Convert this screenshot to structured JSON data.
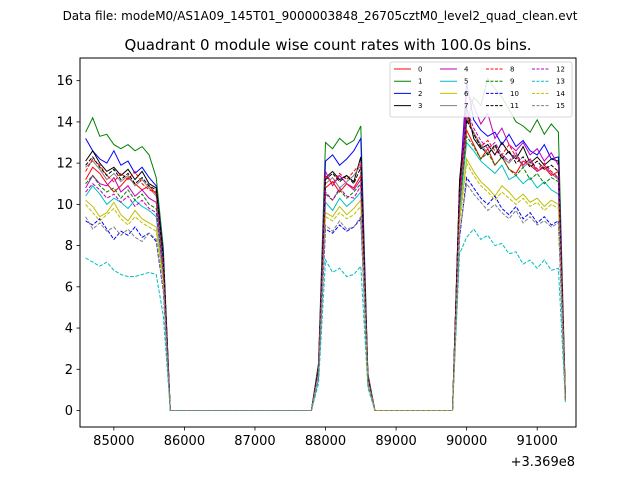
{
  "header": {
    "datafile": "Data file: modeM0/AS1A09_145T01_9000003848_26705cztM0_level2_quad_clean.evt"
  },
  "chart_data": {
    "type": "line",
    "title": "Quadrant 0 module wise count rates with 100.0s bins.",
    "xlabel": "",
    "ylabel": "",
    "x_offset_label": "+3.369e8",
    "xlim": [
      84520,
      91550
    ],
    "ylim": [
      -0.8,
      17.1
    ],
    "x_ticks": [
      85000,
      86000,
      87000,
      88000,
      89000,
      90000,
      91000
    ],
    "x_tick_labels": [
      "85000",
      "86000",
      "87000",
      "88000",
      "89000",
      "90000",
      "91000"
    ],
    "y_ticks": [
      0,
      2,
      4,
      6,
      8,
      10,
      12,
      14,
      16
    ],
    "y_tick_labels": [
      "0",
      "2",
      "4",
      "6",
      "8",
      "10",
      "12",
      "14",
      "16"
    ],
    "legend_position": "top-right",
    "x": [
      84600,
      84700,
      84800,
      84900,
      85000,
      85100,
      85200,
      85300,
      85400,
      85500,
      85600,
      85700,
      85800,
      85900,
      86000,
      86100,
      86200,
      86300,
      86400,
      86500,
      86600,
      86700,
      86800,
      86900,
      87000,
      87100,
      87200,
      87300,
      87400,
      87500,
      87600,
      87700,
      87800,
      87900,
      88000,
      88100,
      88200,
      88300,
      88400,
      88500,
      88600,
      88700,
      88800,
      88900,
      89000,
      89100,
      89200,
      89300,
      89400,
      89500,
      89600,
      89700,
      89800,
      89900,
      90000,
      90100,
      90200,
      90300,
      90400,
      90500,
      90600,
      90700,
      90800,
      90900,
      91000,
      91100,
      91200,
      91300,
      91400
    ],
    "series": [
      {
        "name": "0",
        "color": "#ff0000",
        "dash": "solid",
        "values": [
          11.2,
          11.8,
          11.5,
          11.0,
          10.6,
          10.9,
          11.3,
          11.0,
          10.7,
          10.9,
          10.5,
          7.2,
          0,
          0,
          0,
          0,
          0,
          0,
          0,
          0,
          0,
          0,
          0,
          0,
          0,
          0,
          0,
          0,
          0,
          0,
          0,
          0,
          0,
          2.1,
          10.8,
          11.1,
          10.6,
          11.0,
          10.8,
          11.4,
          1.6,
          0,
          0,
          0,
          0,
          0,
          0,
          0,
          0,
          0,
          0,
          0,
          0,
          10.0,
          13.6,
          12.9,
          12.2,
          12.7,
          11.9,
          12.3,
          11.7,
          11.5,
          12.1,
          11.9,
          11.6,
          11.8,
          11.4,
          11.6,
          0.6
        ]
      },
      {
        "name": "1",
        "color": "#008000",
        "dash": "solid",
        "values": [
          13.5,
          14.2,
          13.3,
          13.4,
          12.9,
          12.7,
          12.9,
          12.6,
          12.8,
          12.4,
          11.3,
          7.9,
          0,
          0,
          0,
          0,
          0,
          0,
          0,
          0,
          0,
          0,
          0,
          0,
          0,
          0,
          0,
          0,
          0,
          0,
          0,
          0,
          0,
          2.3,
          13.0,
          12.7,
          13.2,
          12.9,
          13.1,
          13.8,
          1.8,
          0,
          0,
          0,
          0,
          0,
          0,
          0,
          0,
          0,
          0,
          0,
          0,
          11.0,
          13.9,
          15.2,
          14.8,
          16.1,
          15.6,
          15.2,
          14.6,
          14.0,
          13.8,
          13.5,
          14.1,
          13.4,
          13.9,
          13.5,
          0.7
        ]
      },
      {
        "name": "2",
        "color": "#0000ff",
        "dash": "solid",
        "values": [
          13.2,
          12.6,
          12.2,
          12.0,
          12.6,
          11.9,
          12.1,
          11.5,
          11.8,
          11.3,
          10.9,
          7.6,
          0,
          0,
          0,
          0,
          0,
          0,
          0,
          0,
          0,
          0,
          0,
          0,
          0,
          0,
          0,
          0,
          0,
          0,
          0,
          0,
          0,
          2.2,
          12.1,
          12.4,
          11.9,
          12.2,
          12.6,
          13.2,
          1.7,
          0,
          0,
          0,
          0,
          0,
          0,
          0,
          0,
          0,
          0,
          0,
          0,
          10.8,
          15.9,
          14.1,
          13.6,
          13.3,
          13.5,
          12.9,
          13.4,
          12.8,
          13.1,
          12.6,
          12.4,
          12.9,
          12.2,
          12.3,
          0.6
        ]
      },
      {
        "name": "3",
        "color": "#000000",
        "dash": "solid",
        "values": [
          12.1,
          12.6,
          12.0,
          11.6,
          11.8,
          11.4,
          11.7,
          11.2,
          11.6,
          11.0,
          10.8,
          7.4,
          0,
          0,
          0,
          0,
          0,
          0,
          0,
          0,
          0,
          0,
          0,
          0,
          0,
          0,
          0,
          0,
          0,
          0,
          0,
          0,
          0,
          2.1,
          11.3,
          11.6,
          11.2,
          11.4,
          11.1,
          12.3,
          1.6,
          0,
          0,
          0,
          0,
          0,
          0,
          0,
          0,
          0,
          0,
          0,
          0,
          11.2,
          14.7,
          13.2,
          12.7,
          12.9,
          12.4,
          13.0,
          12.5,
          12.2,
          12.8,
          12.0,
          12.3,
          11.9,
          12.2,
          12.1,
          0.6
        ]
      },
      {
        "name": "4",
        "color": "#bf00bf",
        "dash": "solid",
        "values": [
          10.8,
          11.4,
          11.0,
          10.9,
          11.3,
          10.6,
          10.9,
          10.4,
          10.7,
          10.3,
          10.1,
          7.0,
          0,
          0,
          0,
          0,
          0,
          0,
          0,
          0,
          0,
          0,
          0,
          0,
          0,
          0,
          0,
          0,
          0,
          0,
          0,
          0,
          0,
          2.0,
          11.6,
          10.9,
          11.4,
          11.0,
          10.7,
          11.2,
          1.6,
          0,
          0,
          0,
          0,
          0,
          0,
          0,
          0,
          0,
          0,
          0,
          0,
          10.3,
          15.5,
          14.8,
          13.9,
          14.4,
          13.2,
          13.7,
          12.9,
          12.6,
          13.0,
          12.4,
          12.7,
          12.1,
          12.5,
          11.9,
          0.6
        ]
      },
      {
        "name": "5",
        "color": "#00bfbf",
        "dash": "solid",
        "values": [
          10.4,
          10.9,
          10.5,
          10.0,
          10.3,
          10.1,
          9.8,
          10.2,
          9.9,
          9.7,
          9.4,
          6.6,
          0,
          0,
          0,
          0,
          0,
          0,
          0,
          0,
          0,
          0,
          0,
          0,
          0,
          0,
          0,
          0,
          0,
          0,
          0,
          0,
          0,
          1.9,
          10.1,
          9.7,
          10.3,
          9.9,
          10.2,
          10.6,
          1.5,
          0,
          0,
          0,
          0,
          0,
          0,
          0,
          0,
          0,
          0,
          0,
          0,
          9.6,
          13.0,
          12.6,
          12.1,
          11.8,
          11.5,
          11.9,
          11.2,
          11.4,
          11.0,
          11.3,
          10.8,
          11.1,
          10.7,
          10.5,
          0.5
        ]
      },
      {
        "name": "6",
        "color": "#bfbf00",
        "dash": "solid",
        "values": [
          10.2,
          9.9,
          9.4,
          9.6,
          10.1,
          9.5,
          9.2,
          9.7,
          9.3,
          9.1,
          8.9,
          6.3,
          0,
          0,
          0,
          0,
          0,
          0,
          0,
          0,
          0,
          0,
          0,
          0,
          0,
          0,
          0,
          0,
          0,
          0,
          0,
          0,
          0,
          1.8,
          9.6,
          9.4,
          9.9,
          9.5,
          9.8,
          10.2,
          1.4,
          0,
          0,
          0,
          0,
          0,
          0,
          0,
          0,
          0,
          0,
          0,
          0,
          9.3,
          12.2,
          11.6,
          11.1,
          10.8,
          10.4,
          10.9,
          10.6,
          10.2,
          10.5,
          10.1,
          10.3,
          9.9,
          10.2,
          10.0,
          0.5
        ]
      },
      {
        "name": "7",
        "color": "#808080",
        "dash": "solid",
        "values": [
          11.8,
          12.1,
          11.7,
          11.2,
          11.5,
          11.1,
          11.4,
          10.9,
          11.2,
          10.8,
          10.4,
          7.3,
          0,
          0,
          0,
          0,
          0,
          0,
          0,
          0,
          0,
          0,
          0,
          0,
          0,
          0,
          0,
          0,
          0,
          0,
          0,
          0,
          0,
          2.1,
          11.0,
          11.3,
          10.8,
          11.1,
          11.4,
          11.9,
          1.6,
          0,
          0,
          0,
          0,
          0,
          0,
          0,
          0,
          0,
          0,
          0,
          0,
          10.6,
          14.2,
          13.5,
          12.9,
          12.5,
          12.8,
          12.3,
          12.0,
          12.4,
          11.8,
          12.1,
          11.6,
          11.9,
          11.5,
          11.2,
          0.6
        ]
      },
      {
        "name": "8",
        "color": "#ff0000",
        "dash": "dashed",
        "values": [
          11.6,
          12.2,
          11.9,
          11.4,
          11.1,
          11.5,
          11.2,
          11.6,
          11.0,
          10.7,
          10.6,
          7.3,
          0,
          0,
          0,
          0,
          0,
          0,
          0,
          0,
          0,
          0,
          0,
          0,
          0,
          0,
          0,
          0,
          0,
          0,
          0,
          0,
          0,
          2.1,
          11.4,
          11.0,
          11.5,
          11.2,
          11.6,
          12.0,
          1.6,
          0,
          0,
          0,
          0,
          0,
          0,
          0,
          0,
          0,
          0,
          0,
          0,
          10.7,
          14.3,
          13.4,
          12.8,
          13.1,
          12.6,
          12.4,
          12.9,
          12.3,
          11.9,
          12.2,
          11.7,
          12.0,
          11.6,
          11.3,
          0.6
        ]
      },
      {
        "name": "9",
        "color": "#008000",
        "dash": "dashed",
        "values": [
          11.0,
          11.4,
          10.9,
          10.6,
          10.8,
          10.3,
          10.7,
          10.2,
          10.5,
          10.0,
          9.8,
          6.8,
          0,
          0,
          0,
          0,
          0,
          0,
          0,
          0,
          0,
          0,
          0,
          0,
          0,
          0,
          0,
          0,
          0,
          0,
          0,
          0,
          0,
          2.0,
          10.5,
          10.2,
          10.7,
          10.3,
          10.6,
          11.0,
          1.5,
          0,
          0,
          0,
          0,
          0,
          0,
          0,
          0,
          0,
          0,
          0,
          0,
          10.0,
          13.3,
          12.8,
          12.2,
          12.5,
          11.9,
          12.3,
          11.7,
          11.4,
          11.8,
          11.2,
          11.5,
          11.0,
          11.3,
          11.1,
          0.6
        ]
      },
      {
        "name": "10",
        "color": "#0000ff",
        "dash": "dashed",
        "values": [
          9.2,
          9.0,
          9.3,
          8.8,
          8.3,
          8.7,
          8.5,
          8.9,
          8.4,
          8.6,
          8.2,
          5.8,
          0,
          0,
          0,
          0,
          0,
          0,
          0,
          0,
          0,
          0,
          0,
          0,
          0,
          0,
          0,
          0,
          0,
          0,
          0,
          0,
          0,
          1.6,
          8.8,
          8.6,
          9.0,
          8.7,
          8.9,
          9.3,
          1.3,
          0,
          0,
          0,
          0,
          0,
          0,
          0,
          0,
          0,
          0,
          0,
          0,
          8.4,
          11.3,
          10.8,
          10.3,
          10.0,
          10.4,
          9.8,
          9.5,
          9.9,
          9.3,
          9.6,
          9.1,
          9.4,
          9.0,
          9.2,
          0.5
        ]
      },
      {
        "name": "11",
        "color": "#000000",
        "dash": "dashed",
        "values": [
          11.9,
          12.3,
          11.8,
          11.4,
          11.7,
          11.2,
          11.5,
          11.0,
          11.3,
          10.9,
          10.7,
          7.4,
          0,
          0,
          0,
          0,
          0,
          0,
          0,
          0,
          0,
          0,
          0,
          0,
          0,
          0,
          0,
          0,
          0,
          0,
          0,
          0,
          0,
          2.1,
          11.2,
          11.5,
          11.1,
          11.4,
          11.0,
          11.8,
          1.6,
          0,
          0,
          0,
          0,
          0,
          0,
          0,
          0,
          0,
          0,
          0,
          0,
          10.9,
          14.1,
          13.4,
          12.8,
          12.4,
          12.9,
          12.2,
          12.6,
          12.0,
          12.3,
          11.8,
          12.1,
          11.7,
          11.9,
          11.6,
          0.6
        ]
      },
      {
        "name": "12",
        "color": "#bf00bf",
        "dash": "dashed",
        "values": [
          10.6,
          11.0,
          10.7,
          10.3,
          10.5,
          10.1,
          10.4,
          9.9,
          10.2,
          9.8,
          9.6,
          6.7,
          0,
          0,
          0,
          0,
          0,
          0,
          0,
          0,
          0,
          0,
          0,
          0,
          0,
          0,
          0,
          0,
          0,
          0,
          0,
          0,
          0,
          1.9,
          10.6,
          10.2,
          10.8,
          10.4,
          10.3,
          10.9,
          1.5,
          0,
          0,
          0,
          0,
          0,
          0,
          0,
          0,
          0,
          0,
          0,
          0,
          10.1,
          14.6,
          13.7,
          13.1,
          12.7,
          13.0,
          12.4,
          12.1,
          12.5,
          11.9,
          12.2,
          11.6,
          11.9,
          11.5,
          11.3,
          0.6
        ]
      },
      {
        "name": "13",
        "color": "#00bfbf",
        "dash": "dashed",
        "values": [
          7.4,
          7.2,
          7.0,
          7.2,
          6.8,
          6.6,
          6.5,
          6.5,
          6.6,
          6.7,
          6.6,
          4.6,
          0,
          0,
          0,
          0,
          0,
          0,
          0,
          0,
          0,
          0,
          0,
          0,
          0,
          0,
          0,
          0,
          0,
          0,
          0,
          0,
          0,
          1.3,
          7.3,
          6.7,
          6.9,
          6.5,
          6.6,
          7.0,
          1.1,
          0,
          0,
          0,
          0,
          0,
          0,
          0,
          0,
          0,
          0,
          0,
          0,
          7.6,
          8.4,
          8.8,
          8.3,
          8.5,
          8.0,
          8.1,
          7.6,
          7.7,
          7.1,
          7.3,
          6.9,
          7.3,
          6.8,
          6.9,
          0.4
        ]
      },
      {
        "name": "14",
        "color": "#bfbf00",
        "dash": "dashed",
        "values": [
          10.0,
          9.6,
          9.2,
          9.5,
          9.8,
          9.3,
          9.0,
          9.4,
          9.1,
          8.9,
          8.7,
          6.2,
          0,
          0,
          0,
          0,
          0,
          0,
          0,
          0,
          0,
          0,
          0,
          0,
          0,
          0,
          0,
          0,
          0,
          0,
          0,
          0,
          0,
          1.8,
          9.4,
          9.2,
          9.6,
          9.3,
          9.5,
          9.9,
          1.4,
          0,
          0,
          0,
          0,
          0,
          0,
          0,
          0,
          0,
          0,
          0,
          0,
          9.0,
          12.0,
          11.4,
          10.9,
          10.6,
          10.2,
          10.6,
          10.3,
          10.0,
          10.3,
          9.9,
          10.1,
          9.7,
          10.0,
          9.8,
          0.5
        ]
      },
      {
        "name": "15",
        "color": "#808080",
        "dash": "dashed",
        "values": [
          9.4,
          8.8,
          9.1,
          8.7,
          8.9,
          8.5,
          8.8,
          8.4,
          8.2,
          8.6,
          8.3,
          5.9,
          0,
          0,
          0,
          0,
          0,
          0,
          0,
          0,
          0,
          0,
          0,
          0,
          0,
          0,
          0,
          0,
          0,
          0,
          0,
          0,
          0,
          1.7,
          9.0,
          8.7,
          9.2,
          8.8,
          8.9,
          9.4,
          1.3,
          0,
          0,
          0,
          0,
          0,
          0,
          0,
          0,
          0,
          0,
          0,
          0,
          8.6,
          11.0,
          10.5,
          10.1,
          9.7,
          10.0,
          9.6,
          9.3,
          9.7,
          9.1,
          9.4,
          9.0,
          9.2,
          8.9,
          9.1,
          0.5
        ]
      }
    ]
  }
}
